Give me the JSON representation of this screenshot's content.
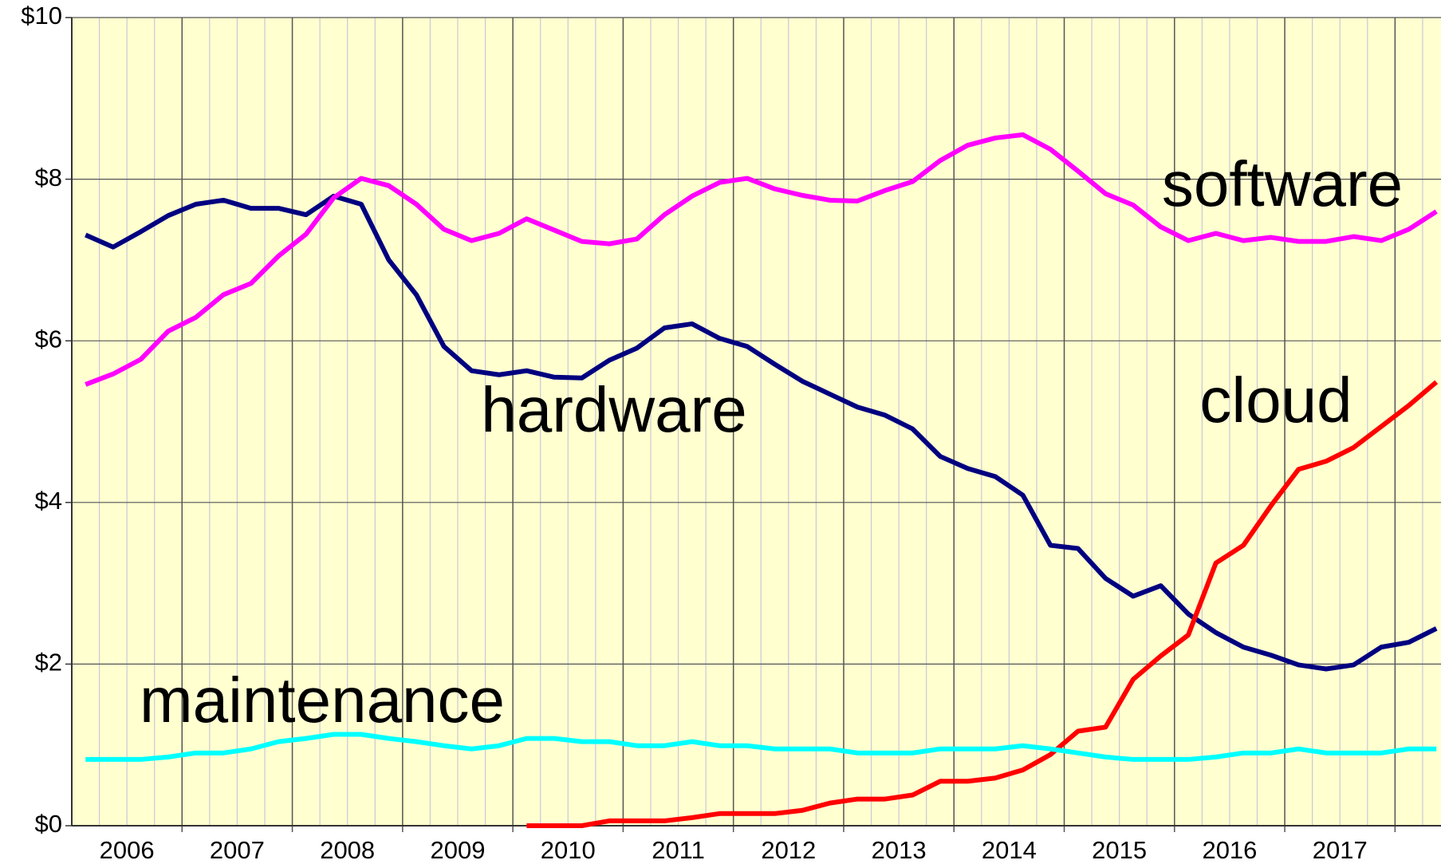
{
  "chart_data": {
    "type": "line",
    "categories": [
      "2006",
      null,
      null,
      null,
      "2007",
      null,
      null,
      null,
      "2008",
      null,
      null,
      null,
      "2009",
      null,
      null,
      null,
      "2010",
      null,
      null,
      null,
      "2011",
      null,
      null,
      null,
      "2012",
      null,
      null,
      null,
      "2013",
      null,
      null,
      null,
      "2014",
      null,
      null,
      null,
      "2015",
      null,
      null,
      null,
      "2016",
      null,
      null,
      null,
      "2017",
      null,
      null,
      null,
      null,
      null
    ],
    "series": [
      {
        "name": "hardware",
        "color": "#000080",
        "values": [
          7.31,
          7.16,
          7.35,
          7.55,
          7.69,
          7.74,
          7.64,
          7.64,
          7.56,
          7.79,
          7.69,
          7.0,
          6.57,
          5.93,
          5.63,
          5.58,
          5.63,
          5.55,
          5.54,
          5.76,
          5.91,
          6.16,
          6.21,
          6.03,
          5.93,
          5.71,
          5.5,
          5.34,
          5.18,
          5.08,
          4.91,
          4.57,
          4.42,
          4.32,
          4.09,
          3.47,
          3.43,
          3.06,
          2.84,
          2.97,
          2.62,
          2.39,
          2.21,
          2.11,
          1.99,
          1.94,
          1.99,
          2.21,
          2.27,
          2.44
        ]
      },
      {
        "name": "software",
        "color": "#ff00ff",
        "values": [
          5.46,
          5.59,
          5.77,
          6.12,
          6.29,
          6.57,
          6.71,
          7.05,
          7.32,
          7.77,
          8.01,
          7.92,
          7.69,
          7.38,
          7.24,
          7.33,
          7.51,
          7.37,
          7.23,
          7.2,
          7.26,
          7.56,
          7.79,
          7.96,
          8.01,
          7.88,
          7.8,
          7.74,
          7.73,
          7.86,
          7.97,
          8.23,
          8.42,
          8.51,
          8.55,
          8.37,
          8.1,
          7.82,
          7.68,
          7.41,
          7.24,
          7.33,
          7.24,
          7.28,
          7.23,
          7.23,
          7.29,
          7.24,
          7.38,
          7.6
        ]
      },
      {
        "name": "cloud",
        "color": "#ff0000",
        "values": [
          null,
          null,
          null,
          null,
          null,
          null,
          null,
          null,
          null,
          null,
          null,
          null,
          null,
          null,
          null,
          null,
          0.0,
          0.0,
          0.0,
          0.06,
          0.06,
          0.06,
          0.1,
          0.15,
          0.15,
          0.15,
          0.19,
          0.28,
          0.33,
          0.33,
          0.38,
          0.55,
          0.55,
          0.59,
          0.69,
          0.88,
          1.17,
          1.22,
          1.81,
          2.1,
          2.36,
          3.25,
          3.47,
          3.96,
          4.41,
          4.51,
          4.68,
          4.94,
          5.2,
          5.49
        ]
      },
      {
        "name": "maintenance",
        "color": "#00ffff",
        "values": [
          0.82,
          0.82,
          0.82,
          0.85,
          0.9,
          0.9,
          0.95,
          1.04,
          1.08,
          1.13,
          1.13,
          1.08,
          1.04,
          0.99,
          0.95,
          0.99,
          1.08,
          1.08,
          1.04,
          1.04,
          0.99,
          0.99,
          1.04,
          0.99,
          0.99,
          0.95,
          0.95,
          0.95,
          0.9,
          0.9,
          0.9,
          0.95,
          0.95,
          0.95,
          0.99,
          0.95,
          0.9,
          0.85,
          0.82,
          0.82,
          0.82,
          0.85,
          0.9,
          0.9,
          0.95,
          0.9,
          0.9,
          0.9,
          0.95,
          0.95
        ]
      }
    ],
    "ylim": [
      0,
      10
    ],
    "yticks": [
      {
        "value": 0,
        "label": "$0"
      },
      {
        "value": 2,
        "label": "$2"
      },
      {
        "value": 4,
        "label": "$4"
      },
      {
        "value": 6,
        "label": "$6"
      },
      {
        "value": 8,
        "label": "$8"
      },
      {
        "value": 10,
        "label": "$10"
      }
    ],
    "grid": true
  }
}
